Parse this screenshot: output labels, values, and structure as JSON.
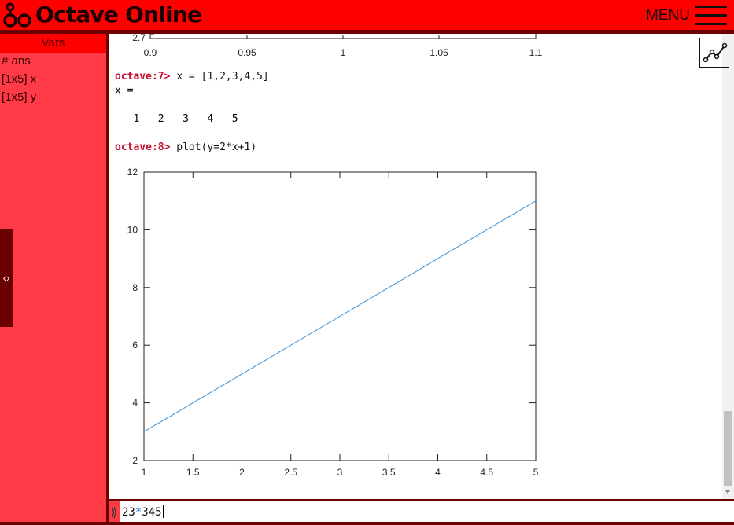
{
  "app": {
    "title": "Octave Online",
    "menu_label": "MENU"
  },
  "vars": {
    "title": "Vars",
    "items": [
      "# ans",
      "[1x5] x",
      "[1x5] y"
    ]
  },
  "console": {
    "prev_plot": {
      "y_ticks": [
        "2.7"
      ],
      "x_ticks": [
        "0.9",
        "0.95",
        "1",
        "1.05",
        "1.1"
      ]
    },
    "entries": [
      {
        "prompt": "octave:7>",
        "command": "x = [1,2,3,4,5]",
        "output": [
          "x =",
          "",
          "   1   2   3   4   5"
        ]
      },
      {
        "prompt": "octave:8>",
        "command": "plot(y=2*x+1)"
      }
    ]
  },
  "chart_data": {
    "type": "line",
    "x": [
      1,
      2,
      3,
      4,
      5
    ],
    "series": [
      {
        "values": [
          3,
          5,
          7,
          9,
          11
        ],
        "color": "#3b8fd6"
      }
    ],
    "xlim": [
      1,
      5
    ],
    "ylim": [
      2,
      12
    ],
    "x_ticks": [
      "1",
      "1.5",
      "2",
      "2.5",
      "3",
      "3.5",
      "4",
      "4.5",
      "5"
    ],
    "y_ticks": [
      "2",
      "4",
      "6",
      "8",
      "10",
      "12"
    ],
    "grid": false
  },
  "input": {
    "parts": [
      "23",
      "*",
      "345"
    ]
  },
  "colors": {
    "brand": "#ff0000",
    "panel": "#ff3b47",
    "dark": "#6b0000",
    "prompt": "#c8102e"
  },
  "icons": {
    "logo": "octave-logo-icon",
    "menu": "hamburger-icon",
    "plot": "plot-icon",
    "collapse": "collapse-arrows-icon",
    "prompt": "chevron-right-icon"
  }
}
